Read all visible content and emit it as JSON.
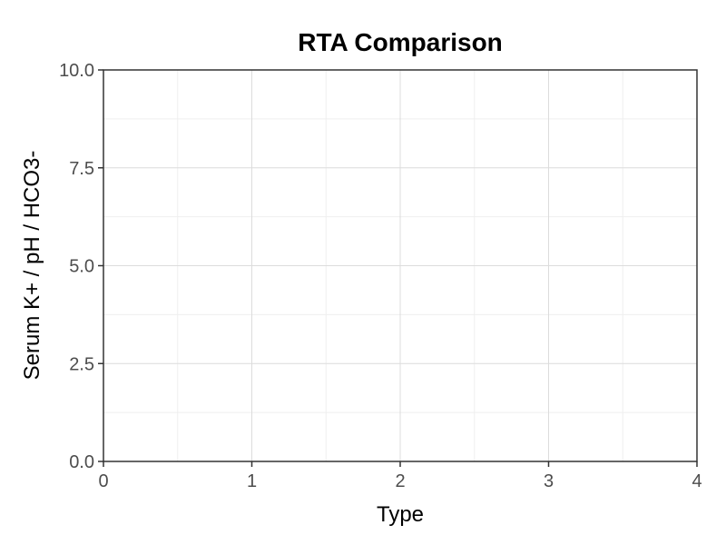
{
  "chart_data": {
    "type": "scatter",
    "title": "RTA Comparison",
    "xlabel": "Type",
    "ylabel": "Serum K+ / pH / HCO3-",
    "xlim": [
      0,
      4
    ],
    "ylim": [
      0,
      10
    ],
    "x_ticks": [
      "0",
      "1",
      "2",
      "3",
      "4"
    ],
    "y_ticks": [
      "0.0",
      "2.5",
      "5.0",
      "7.5",
      "10.0"
    ],
    "x_tick_values": [
      0,
      1,
      2,
      3,
      4
    ],
    "y_tick_values": [
      0,
      2.5,
      5,
      7.5,
      10
    ],
    "grid": true,
    "series": [],
    "colors": {
      "background": "#ffffff",
      "grid": "#dcdcdc",
      "axis": "#333333",
      "text": "#000000"
    }
  }
}
